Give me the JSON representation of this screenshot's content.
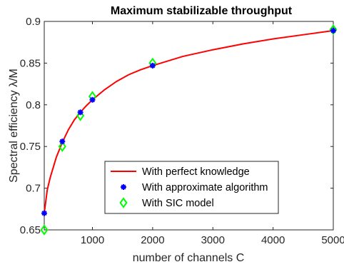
{
  "chart_data": {
    "type": "line",
    "title": "Maximum stabilizable throughput",
    "xlabel": "number of channels C",
    "ylabel": "Spectral efficiency λ/M",
    "xlim": [
      200,
      5000
    ],
    "ylim": [
      0.65,
      0.9
    ],
    "xticks": [
      1000,
      2000,
      3000,
      4000,
      5000
    ],
    "xtick_labels": [
      "1000",
      "2000",
      "3000",
      "4000",
      "5000"
    ],
    "yticks": [
      0.65,
      0.7,
      0.75,
      0.8,
      0.85,
      0.9
    ],
    "ytick_labels": [
      "0.65",
      "0.7",
      "0.75",
      "0.8",
      "0.85",
      "0.9"
    ],
    "grid": false,
    "legend_position": "center-right",
    "series": [
      {
        "name": "With perfect knowledge",
        "style": "line",
        "color": "#ff0000",
        "x": [
          200,
          250,
          300,
          400,
          500,
          600,
          700,
          800,
          900,
          1000,
          1200,
          1400,
          1600,
          1800,
          2000,
          2500,
          3000,
          3500,
          4000,
          4500,
          5000
        ],
        "y": [
          0.67,
          0.698,
          0.713,
          0.737,
          0.755,
          0.77,
          0.782,
          0.791,
          0.799,
          0.806,
          0.818,
          0.828,
          0.836,
          0.842,
          0.847,
          0.858,
          0.866,
          0.873,
          0.879,
          0.884,
          0.889
        ]
      },
      {
        "name": "With approximate algorithm",
        "style": "marker-star",
        "color": "#0000ff",
        "x": [
          200,
          500,
          800,
          1000,
          2000,
          5000
        ],
        "y": [
          0.67,
          0.756,
          0.791,
          0.806,
          0.847,
          0.889
        ]
      },
      {
        "name": "With SIC model",
        "style": "marker-diamond",
        "color": "#00ff00",
        "x": [
          200,
          500,
          800,
          1000,
          2000,
          5000
        ],
        "y": [
          0.65,
          0.75,
          0.787,
          0.81,
          0.85,
          0.89
        ]
      }
    ]
  }
}
